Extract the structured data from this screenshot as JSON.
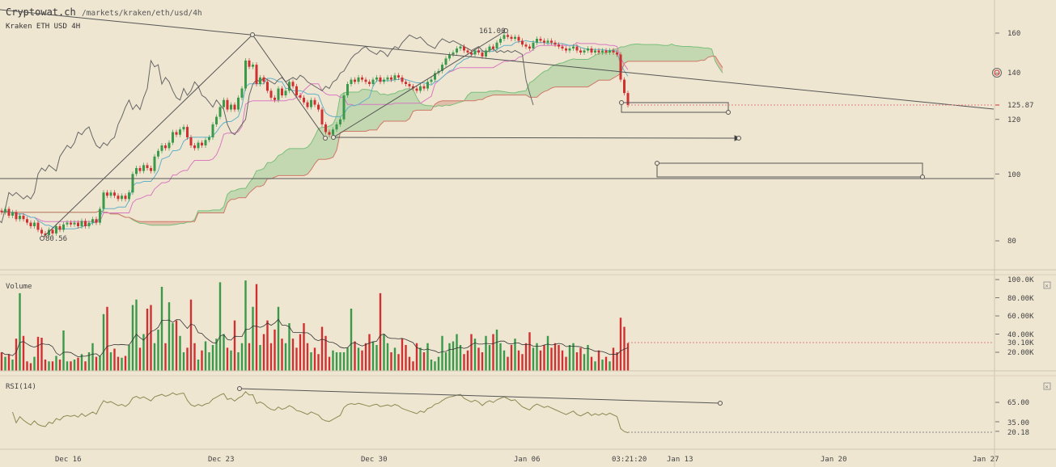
{
  "header": {
    "site": "Cryptowat.ch",
    "path": "/markets/kraken/eth/usd/4h",
    "market": "Kraken ETH USD 4H"
  },
  "colors": {
    "background": "#efe6d2",
    "up": "#3a9a4a",
    "down": "#d03030",
    "tenkan": "#62b0c8",
    "kijun": "#d878c0",
    "chikou": "#666666",
    "cloud_up": "#b8d4a8",
    "cloud_down": "#dcb4a0",
    "drawing": "#555555"
  },
  "price_axis": {
    "scale": "log",
    "ticks": [
      "160",
      "140",
      "120",
      "100",
      "80"
    ],
    "current": "125.87"
  },
  "volume_panel": {
    "label": "Volume",
    "ticks": [
      "100.0K",
      "80.00K",
      "60.00K",
      "40.00K",
      "20.00K"
    ],
    "current": "30.10K"
  },
  "rsi_panel": {
    "label": "RSI(14)",
    "ticks": [
      "65.00",
      "35.00"
    ],
    "current": "20.18"
  },
  "time_axis": {
    "ticks": [
      "Dec 16",
      "Dec 23",
      "Dec 30",
      "Jan 06",
      "Jan 13",
      "Jan 20",
      "Jan 27"
    ],
    "cursor": "03:21:20"
  },
  "annotations": {
    "low_label": "80.56",
    "high_label": "161.00"
  },
  "chart_data": {
    "type": "candlestick",
    "interval": "4h",
    "indicators": [
      "Ichimoku",
      "Volume",
      "RSI(14)"
    ],
    "close": [
      88,
      89,
      87,
      88,
      86,
      87,
      86,
      85,
      84,
      85,
      83,
      82,
      81.5,
      83,
      82,
      84,
      83,
      84.5,
      85,
      84.5,
      85,
      84,
      85.5,
      84,
      85,
      86,
      85,
      89,
      94,
      93,
      94,
      93,
      92,
      93,
      92,
      94,
      100,
      102,
      101,
      103,
      102,
      101,
      106,
      108,
      110,
      109,
      111,
      115,
      114,
      116,
      117,
      113,
      110,
      109,
      111,
      110,
      112,
      113,
      118,
      121,
      125,
      128,
      124,
      126,
      124,
      129,
      133,
      146,
      143,
      144,
      135,
      138,
      136,
      132,
      129,
      128,
      133,
      130,
      132,
      136,
      134,
      130,
      129,
      127,
      125,
      128,
      126,
      124,
      118,
      115,
      114,
      116,
      118,
      120,
      130,
      135,
      137,
      136,
      138,
      137,
      136,
      135,
      137,
      138,
      136,
      137,
      138,
      137,
      139,
      138,
      136,
      135,
      134,
      133,
      132,
      134,
      133,
      136,
      137,
      140,
      141,
      144,
      147,
      149,
      150,
      152,
      153,
      151,
      150,
      149,
      151,
      150,
      148,
      151,
      153,
      152,
      155,
      157,
      159,
      158,
      157,
      158,
      156,
      154,
      153,
      152,
      155,
      157,
      156,
      155,
      156,
      155,
      154,
      153,
      152,
      151,
      152,
      153,
      151,
      150,
      151,
      152,
      150,
      151,
      150,
      151,
      150,
      151,
      150,
      149,
      137,
      131,
      125.87
    ],
    "volume_k": [
      20,
      15,
      18,
      12,
      35,
      85,
      38,
      10,
      8,
      15,
      37,
      36,
      12,
      10,
      10,
      16,
      12,
      44,
      10,
      10,
      12,
      14,
      18,
      10,
      20,
      30,
      15,
      16,
      62,
      70,
      20,
      24,
      15,
      14,
      16,
      28,
      72,
      78,
      25,
      40,
      68,
      72,
      30,
      45,
      92,
      30,
      75,
      52,
      55,
      38,
      20,
      25,
      78,
      30,
      12,
      22,
      32,
      20,
      28,
      35,
      97,
      40,
      25,
      22,
      55,
      20,
      30,
      99,
      30,
      70,
      95,
      28,
      40,
      55,
      30,
      45,
      70,
      35,
      30,
      52,
      35,
      25,
      40,
      52,
      30,
      20,
      25,
      18,
      48,
      38,
      15,
      22,
      20,
      20,
      20,
      25,
      68,
      32,
      25,
      22,
      30,
      40,
      32,
      28,
      85,
      40,
      30,
      20,
      25,
      18,
      35,
      28,
      15,
      10,
      30,
      25,
      20,
      30,
      12,
      10,
      15,
      38,
      20,
      30,
      32,
      40,
      28,
      18,
      22,
      40,
      35,
      25,
      20,
      38,
      28,
      40,
      45,
      30,
      22,
      15,
      28,
      35,
      22,
      18,
      30,
      42,
      25,
      30,
      22,
      28,
      38,
      25,
      30,
      28,
      22,
      15,
      28,
      30,
      20,
      25,
      18,
      28,
      15,
      10,
      22,
      12,
      15,
      10,
      25,
      20,
      58,
      48,
      30.1
    ],
    "trendlines_price": [
      {
        "from": [
          80.56,
          "low"
        ],
        "to": [
          158,
          "high"
        ]
      },
      {
        "from": [
          114,
          "Dec 27"
        ],
        "to": [
          161.0,
          "Jan 06"
        ]
      }
    ],
    "horizontal_levels": [
      99,
      125.87
    ]
  }
}
